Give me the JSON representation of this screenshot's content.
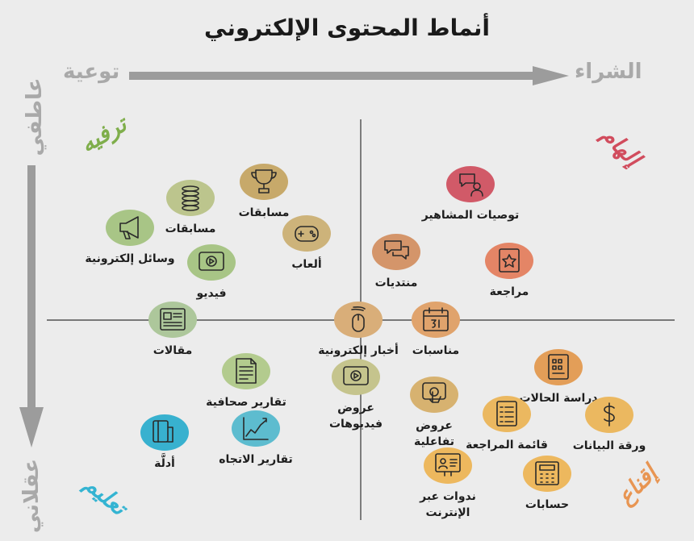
{
  "title": "أنماط المحتوى الإلكتروني",
  "axes": {
    "horizontal_left": "توعية",
    "horizontal_right": "الشراء",
    "vertical_top": "عاطفي",
    "vertical_bottom": "عقلاني"
  },
  "quadrants": {
    "top_left": "ترفيه",
    "top_right": "إلهام",
    "bottom_left": "تعليم",
    "bottom_right": "إقناع"
  },
  "items": [
    {
      "label": "مسابقات",
      "line2": "",
      "color": "#c7a96a",
      "icon": "trophy-icon"
    },
    {
      "label": "مسابقات",
      "line2": "",
      "color": "#bcc58d",
      "icon": "spring-icon"
    },
    {
      "label": "وسائل إلكترونية",
      "line2": "",
      "color": "#a8c586",
      "icon": "megaphone-icon"
    },
    {
      "label": "ألعاب",
      "line2": "",
      "color": "#cdb37a",
      "icon": "gamepad-icon"
    },
    {
      "label": "فيديو",
      "line2": "",
      "color": "#a8c586",
      "icon": "play-icon"
    },
    {
      "label": "مقالات",
      "line2": "",
      "color": "#adc79b",
      "icon": "article-icon"
    },
    {
      "label": "توصيات المشاهير",
      "line2": "",
      "color": "#d15a68",
      "icon": "testimonial-icon"
    },
    {
      "label": "منتديات",
      "line2": "",
      "color": "#d4956a",
      "icon": "chat-icon"
    },
    {
      "label": "مراجعة",
      "line2": "",
      "color": "#e48566",
      "icon": "review-icon"
    },
    {
      "label": "أخبار إلكترونية",
      "line2": "",
      "color": "#d9ae79",
      "icon": "mouse-icon"
    },
    {
      "label": "مناسبات",
      "line2": "",
      "color": "#e0a36c",
      "icon": "calendar-icon"
    },
    {
      "label": "دراسة الحالات",
      "line2": "",
      "color": "#e39e58",
      "icon": "case-study-icon"
    },
    {
      "label": "تقارير صحافية",
      "line2": "",
      "color": "#b3cb8e",
      "icon": "press-report-icon"
    },
    {
      "label": "عروض",
      "line2": "فيديوهات",
      "color": "#c5c48d",
      "icon": "video-icon"
    },
    {
      "label": "عروض",
      "line2": "تفاعلية",
      "color": "#d7b270",
      "icon": "touch-icon"
    },
    {
      "label": "قائمة المراجعة",
      "line2": "",
      "color": "#ebb860",
      "icon": "checklist-icon"
    },
    {
      "label": "ورقة البيانات",
      "line2": "",
      "color": "#ebb860",
      "icon": "dollar-icon"
    },
    {
      "label": "أدلَّة",
      "line2": "",
      "color": "#38b1cf",
      "icon": "guide-icon"
    },
    {
      "label": "تقارير الاتجاه",
      "line2": "",
      "color": "#5dbccf",
      "icon": "trend-chart-icon"
    },
    {
      "label": "ندوات عبر",
      "line2": "الإنترنت",
      "color": "#edb85e",
      "icon": "webinar-icon"
    },
    {
      "label": "حسابات",
      "line2": "",
      "color": "#edb85e",
      "icon": "calculator-icon"
    }
  ]
}
